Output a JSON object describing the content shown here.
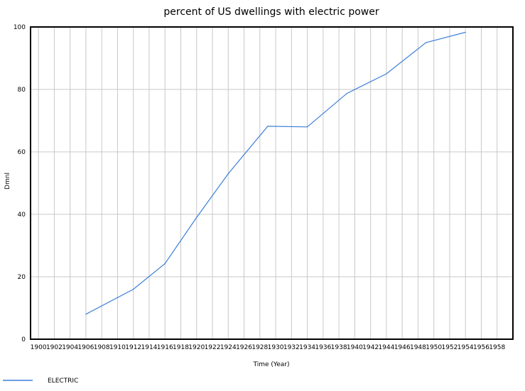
{
  "chart_data": {
    "type": "line",
    "title": "percent of US dwellings with electric power",
    "xlabel": "Time (Year)",
    "ylabel": "Dmnl",
    "xlim": [
      1899,
      1960
    ],
    "ylim": [
      0,
      100
    ],
    "grid": true,
    "x_ticks": [
      1900,
      1902,
      1904,
      1906,
      1908,
      1910,
      1912,
      1914,
      1916,
      1918,
      1920,
      1922,
      1924,
      1926,
      1928,
      1930,
      1932,
      1934,
      1936,
      1938,
      1940,
      1942,
      1944,
      1946,
      1948,
      1950,
      1952,
      1954,
      1956,
      1958
    ],
    "y_ticks": [
      0,
      20,
      40,
      60,
      80,
      100
    ],
    "series": [
      {
        "name": "ELECTRIC",
        "color": "#3b7fd9",
        "x": [
          1906,
          1912,
          1916,
          1920,
          1924,
          1929,
          1934,
          1939,
          1944,
          1949,
          1954
        ],
        "y": [
          8,
          16,
          24.2,
          39,
          53,
          68.2,
          68,
          78.7,
          85,
          95,
          98.3
        ]
      }
    ],
    "legend": {
      "position": "bottom-left",
      "entries": [
        "ELECTRIC"
      ]
    }
  }
}
